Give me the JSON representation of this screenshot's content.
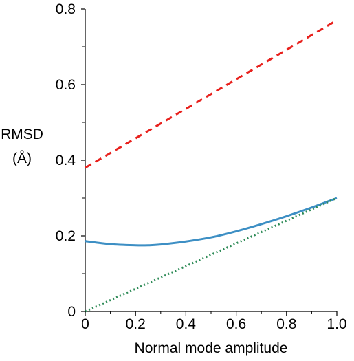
{
  "chart_data": {
    "type": "line",
    "xlabel": "Normal mode amplitude",
    "ylabel_line1": "RMSD",
    "ylabel_line2": "(Å)",
    "xlim": [
      0,
      1.0
    ],
    "ylim": [
      0,
      0.8
    ],
    "x_ticks": [
      {
        "value": 0,
        "label": "0"
      },
      {
        "value": 0.2,
        "label": "0.2"
      },
      {
        "value": 0.4,
        "label": "0.4"
      },
      {
        "value": 0.6,
        "label": "0.6"
      },
      {
        "value": 0.8,
        "label": "0.8"
      },
      {
        "value": 1.0,
        "label": "1.0"
      }
    ],
    "y_ticks": [
      {
        "value": 0,
        "label": "0"
      },
      {
        "value": 0.2,
        "label": "0.2"
      },
      {
        "value": 0.4,
        "label": "0.4"
      },
      {
        "value": 0.6,
        "label": "0.6"
      },
      {
        "value": 0.8,
        "label": "0.8"
      }
    ],
    "grid": false,
    "legend": "none",
    "series": [
      {
        "color": "#e8211d",
        "style": "dashed",
        "x": [
          0,
          0.2,
          0.4,
          0.6,
          0.8,
          1.0
        ],
        "y": [
          0.38,
          0.458,
          0.536,
          0.614,
          0.692,
          0.77
        ]
      },
      {
        "color": "#3d8fc4",
        "style": "solid",
        "x": [
          0,
          0.1,
          0.2,
          0.25,
          0.3,
          0.4,
          0.5,
          0.6,
          0.7,
          0.8,
          0.9,
          1.0
        ],
        "y": [
          0.186,
          0.178,
          0.175,
          0.175,
          0.177,
          0.185,
          0.196,
          0.212,
          0.231,
          0.252,
          0.275,
          0.3
        ]
      },
      {
        "color": "#2e8b57",
        "style": "dotted",
        "x": [
          0,
          1.0
        ],
        "y": [
          0,
          0.3
        ]
      }
    ]
  }
}
